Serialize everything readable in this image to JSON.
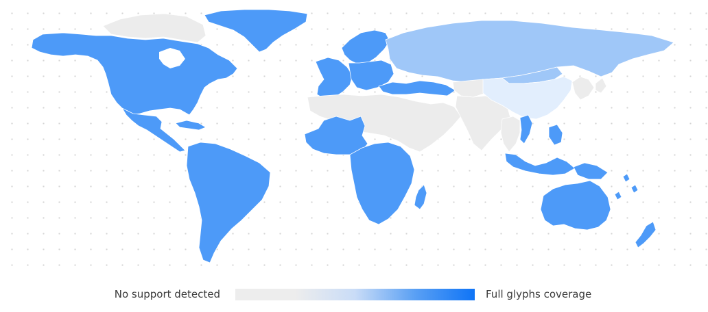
{
  "legend": {
    "min_label": "No support detected",
    "max_label": "Full glyphs coverage",
    "gradient": [
      "#ededed",
      "#ededed",
      "#c9dcf7",
      "#5aa0f4",
      "#0f74f6"
    ]
  },
  "colors": {
    "none": "#ececec",
    "partial_low": "#e2eefd",
    "partial_high": "#9fc7f8",
    "full": "#4d9af8",
    "dots": "#d4d4d4"
  },
  "coverage_levels": [
    {
      "level": "none",
      "value": 0
    },
    {
      "level": "partial_low",
      "value": 0.15
    },
    {
      "level": "partial_high",
      "value": 0.45
    },
    {
      "level": "full",
      "value": 1
    }
  ],
  "regions": [
    {
      "name": "North America",
      "coverage": "full"
    },
    {
      "name": "Greenland",
      "coverage": "full"
    },
    {
      "name": "Arctic Canada",
      "coverage": "none"
    },
    {
      "name": "Central America",
      "coverage": "full"
    },
    {
      "name": "Caribbean",
      "coverage": "full"
    },
    {
      "name": "South America",
      "coverage": "full"
    },
    {
      "name": "Western Europe",
      "coverage": "full"
    },
    {
      "name": "Scandinavia",
      "coverage": "full"
    },
    {
      "name": "Eastern Europe",
      "coverage": "full"
    },
    {
      "name": "Russia",
      "coverage": "partial_high"
    },
    {
      "name": "Turkey and Caucasus",
      "coverage": "full"
    },
    {
      "name": "Middle East and North Africa",
      "coverage": "none"
    },
    {
      "name": "West Africa",
      "coverage": "full"
    },
    {
      "name": "Central and Southern Africa",
      "coverage": "full"
    },
    {
      "name": "Madagascar",
      "coverage": "full"
    },
    {
      "name": "Central Asia",
      "coverage": "none"
    },
    {
      "name": "South Asia",
      "coverage": "none"
    },
    {
      "name": "China",
      "coverage": "partial_low"
    },
    {
      "name": "Mongolia",
      "coverage": "partial_high"
    },
    {
      "name": "Korea and Japan",
      "coverage": "none"
    },
    {
      "name": "Southeast Asia mainland",
      "coverage": "none"
    },
    {
      "name": "Vietnam",
      "coverage": "full"
    },
    {
      "name": "Philippines",
      "coverage": "full"
    },
    {
      "name": "Indonesia and Malaysia",
      "coverage": "full"
    },
    {
      "name": "Papua New Guinea",
      "coverage": "full"
    },
    {
      "name": "Australia",
      "coverage": "full"
    },
    {
      "name": "New Zealand",
      "coverage": "full"
    },
    {
      "name": "Pacific Islands",
      "coverage": "full"
    }
  ]
}
